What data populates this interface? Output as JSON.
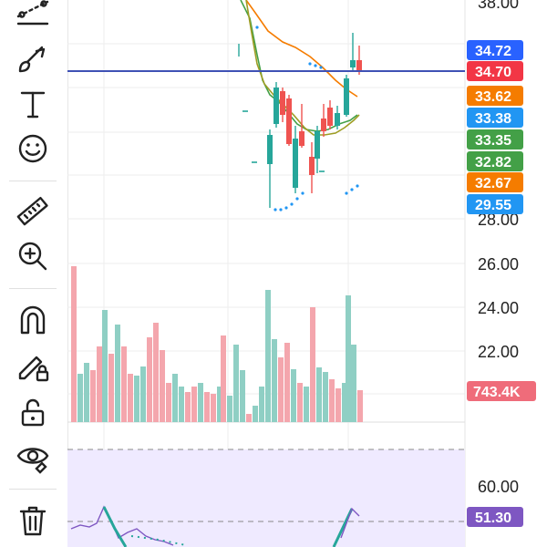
{
  "toolbar": {
    "tools": [
      {
        "name": "trend-line-icon"
      },
      {
        "name": "brush-icon"
      },
      {
        "name": "text-icon",
        "glyph": "T"
      },
      {
        "name": "emoji-icon"
      },
      {
        "name": "ruler-icon"
      },
      {
        "name": "zoom-in-icon"
      },
      {
        "name": "magnet-icon"
      },
      {
        "name": "lock-drawing-icon"
      },
      {
        "name": "unlock-icon"
      },
      {
        "name": "eye-icon"
      },
      {
        "name": "trash-icon"
      }
    ]
  },
  "price_axis": {
    "ticks": [
      "38.00",
      "28.00",
      "26.00",
      "24.00",
      "22.00"
    ],
    "badges": [
      {
        "label": "34.72",
        "color": "#2962ff"
      },
      {
        "label": "34.70",
        "color": "#f23645"
      },
      {
        "label": "33.62",
        "color": "#f57c00"
      },
      {
        "label": "33.38",
        "color": "#2196f3"
      },
      {
        "label": "33.35",
        "color": "#43a047"
      },
      {
        "label": "32.82",
        "color": "#43a047"
      },
      {
        "label": "32.67",
        "color": "#f57c00"
      },
      {
        "label": "29.55",
        "color": "#2196f3"
      }
    ],
    "volume_badge": {
      "label": "743.4K",
      "color": "#ef6c7a"
    }
  },
  "indicator_axis": {
    "ticks": [
      "60.00"
    ],
    "badge": {
      "label": "51.30",
      "color": "#7e57c2"
    }
  },
  "colors": {
    "up": "#26a69a",
    "down": "#ef5350",
    "price_line": "#3f51b5",
    "ema_orange": "#f57c00",
    "ema_green": "#43a047",
    "ema_olive": "#9e9d24",
    "psar": "#2196f3",
    "vol_up": "#8fcfc4",
    "vol_down": "#f4a6ad",
    "indicator_bg": "#efeaff",
    "indicator_line": "#7e57c2"
  }
}
